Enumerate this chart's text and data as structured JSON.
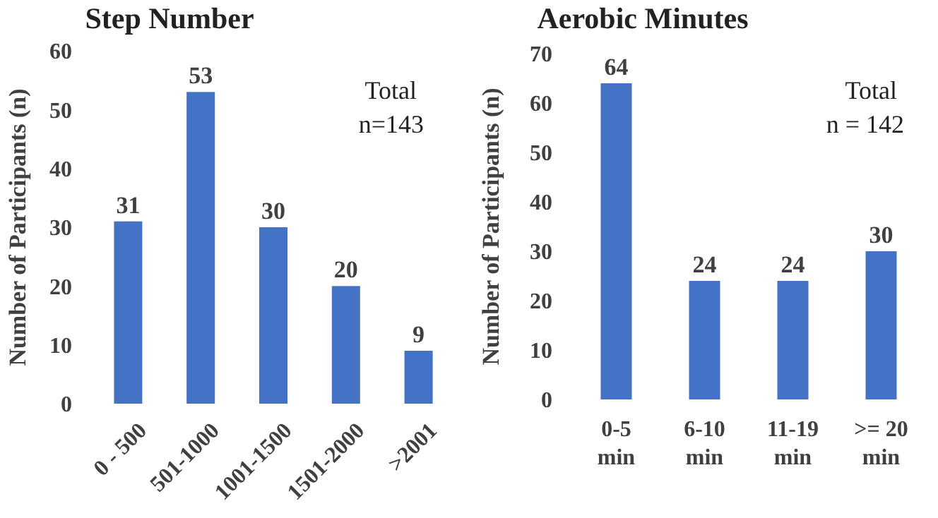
{
  "chart_data": [
    {
      "type": "bar",
      "title": "Step Number",
      "ylabel": "Number of Participants (n)",
      "categories": [
        "0 - 500",
        "501-1000",
        "1001-1500",
        "1501-2000",
        ">2001"
      ],
      "values": [
        31,
        53,
        30,
        20,
        9
      ],
      "color": "#4472c4",
      "ylim": [
        0,
        60
      ],
      "yticks": [
        0,
        10,
        20,
        30,
        40,
        50,
        60
      ],
      "data_labels": true,
      "grid": false,
      "annotations": [
        "Total n=143"
      ]
    },
    {
      "type": "bar",
      "title": "Aerobic Minutes",
      "ylabel": "Number of Participants (n)",
      "categories": [
        "0-5 min",
        "6-10 min",
        "11-19 min",
        ">= 20 min"
      ],
      "values": [
        64,
        24,
        24,
        30
      ],
      "color": "#4472c4",
      "ylim": [
        0,
        70
      ],
      "yticks": [
        0,
        10,
        20,
        30,
        40,
        50,
        60,
        70
      ],
      "data_labels": true,
      "grid": false,
      "annotations": [
        "Total n = 142"
      ]
    }
  ]
}
